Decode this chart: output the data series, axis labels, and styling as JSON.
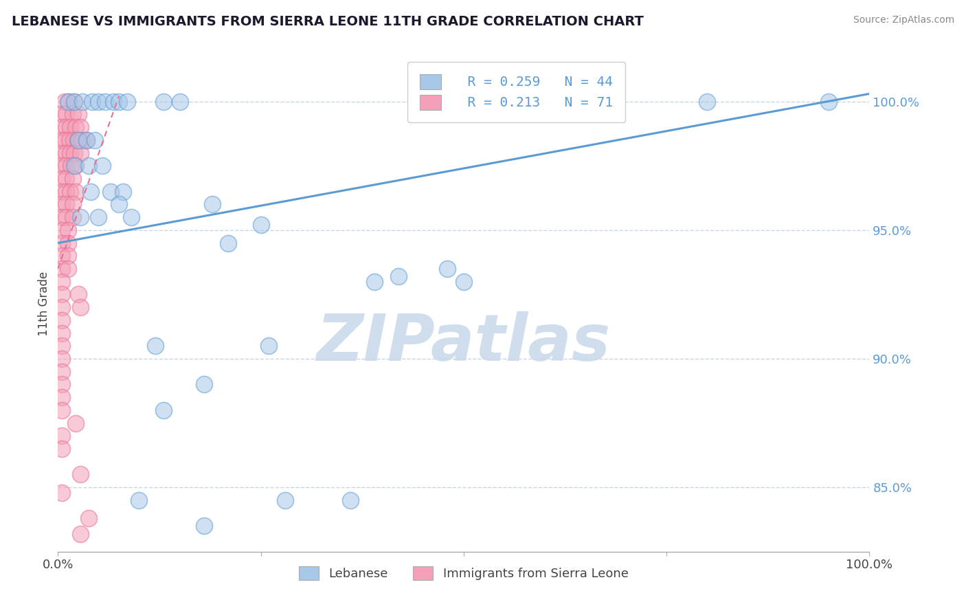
{
  "title": "LEBANESE VS IMMIGRANTS FROM SIERRA LEONE 11TH GRADE CORRELATION CHART",
  "source": "Source: ZipAtlas.com",
  "ylabel": "11th Grade",
  "xlim": [
    0.0,
    100.0
  ],
  "ylim": [
    82.5,
    101.8
  ],
  "yticks": [
    85.0,
    90.0,
    95.0,
    100.0
  ],
  "ytick_labels": [
    "85.0%",
    "90.0%",
    "95.0%",
    "100.0%"
  ],
  "blue_color": "#5b9bd5",
  "blue_scatter_color": "#a8c8e8",
  "pink_color": "#e87090",
  "pink_scatter_color": "#f4a0b8",
  "blue_scatter": [
    [
      1.2,
      100.0
    ],
    [
      2.0,
      100.0
    ],
    [
      3.0,
      100.0
    ],
    [
      4.2,
      100.0
    ],
    [
      5.0,
      100.0
    ],
    [
      5.8,
      100.0
    ],
    [
      6.8,
      100.0
    ],
    [
      7.5,
      100.0
    ],
    [
      8.5,
      100.0
    ],
    [
      13.0,
      100.0
    ],
    [
      15.0,
      100.0
    ],
    [
      80.0,
      100.0
    ],
    [
      95.0,
      100.0
    ],
    [
      2.5,
      98.5
    ],
    [
      3.5,
      98.5
    ],
    [
      4.5,
      98.5
    ],
    [
      2.0,
      97.5
    ],
    [
      3.8,
      97.5
    ],
    [
      5.5,
      97.5
    ],
    [
      4.0,
      96.5
    ],
    [
      6.5,
      96.5
    ],
    [
      8.0,
      96.5
    ],
    [
      7.5,
      96.0
    ],
    [
      19.0,
      96.0
    ],
    [
      2.8,
      95.5
    ],
    [
      5.0,
      95.5
    ],
    [
      9.0,
      95.5
    ],
    [
      25.0,
      95.2
    ],
    [
      21.0,
      94.5
    ],
    [
      42.0,
      93.2
    ],
    [
      48.0,
      93.5
    ],
    [
      12.0,
      90.5
    ],
    [
      26.0,
      90.5
    ],
    [
      50.0,
      93.0
    ],
    [
      18.0,
      89.0
    ],
    [
      13.0,
      88.0
    ],
    [
      39.0,
      93.0
    ],
    [
      10.0,
      84.5
    ],
    [
      36.0,
      84.5
    ],
    [
      18.0,
      83.5
    ],
    [
      28.0,
      84.5
    ]
  ],
  "pink_scatter": [
    [
      0.8,
      100.0
    ],
    [
      1.3,
      100.0
    ],
    [
      2.0,
      100.0
    ],
    [
      0.5,
      99.5
    ],
    [
      1.0,
      99.5
    ],
    [
      1.8,
      99.5
    ],
    [
      2.5,
      99.5
    ],
    [
      0.5,
      99.0
    ],
    [
      1.0,
      99.0
    ],
    [
      1.5,
      99.0
    ],
    [
      2.2,
      99.0
    ],
    [
      2.8,
      99.0
    ],
    [
      0.5,
      98.5
    ],
    [
      0.9,
      98.5
    ],
    [
      1.4,
      98.5
    ],
    [
      1.9,
      98.5
    ],
    [
      2.4,
      98.5
    ],
    [
      2.9,
      98.5
    ],
    [
      3.5,
      98.5
    ],
    [
      0.5,
      98.0
    ],
    [
      1.0,
      98.0
    ],
    [
      1.5,
      98.0
    ],
    [
      2.0,
      98.0
    ],
    [
      2.8,
      98.0
    ],
    [
      0.5,
      97.5
    ],
    [
      1.0,
      97.5
    ],
    [
      1.6,
      97.5
    ],
    [
      2.2,
      97.5
    ],
    [
      0.5,
      97.0
    ],
    [
      1.0,
      97.0
    ],
    [
      1.8,
      97.0
    ],
    [
      0.5,
      96.5
    ],
    [
      1.0,
      96.5
    ],
    [
      1.5,
      96.5
    ],
    [
      2.2,
      96.5
    ],
    [
      0.5,
      96.0
    ],
    [
      1.0,
      96.0
    ],
    [
      1.8,
      96.0
    ],
    [
      0.5,
      95.5
    ],
    [
      1.0,
      95.5
    ],
    [
      1.8,
      95.5
    ],
    [
      0.5,
      95.0
    ],
    [
      1.2,
      95.0
    ],
    [
      0.5,
      94.5
    ],
    [
      1.2,
      94.5
    ],
    [
      0.5,
      94.0
    ],
    [
      1.2,
      94.0
    ],
    [
      0.5,
      93.5
    ],
    [
      1.2,
      93.5
    ],
    [
      0.5,
      93.0
    ],
    [
      0.5,
      92.5
    ],
    [
      2.5,
      92.5
    ],
    [
      0.5,
      92.0
    ],
    [
      2.8,
      92.0
    ],
    [
      0.5,
      91.5
    ],
    [
      0.5,
      91.0
    ],
    [
      0.5,
      90.5
    ],
    [
      0.5,
      90.0
    ],
    [
      0.5,
      89.5
    ],
    [
      0.5,
      89.0
    ],
    [
      0.5,
      88.5
    ],
    [
      0.5,
      88.0
    ],
    [
      2.2,
      87.5
    ],
    [
      0.5,
      87.0
    ],
    [
      0.5,
      86.5
    ],
    [
      2.8,
      85.5
    ],
    [
      0.5,
      84.8
    ],
    [
      3.8,
      83.8
    ],
    [
      2.8,
      83.2
    ]
  ],
  "blue_line_x": [
    0.0,
    100.0
  ],
  "blue_line_y": [
    94.5,
    100.3
  ],
  "pink_line_x": [
    0.0,
    7.5
  ],
  "pink_line_y": [
    93.5,
    100.2
  ],
  "background_color": "#ffffff",
  "grid_color": "#c8d4e0",
  "watermark_text": "ZIPatlas",
  "watermark_color": "#c8d8ea",
  "legend_R_N_color": "#5b9bd5",
  "legend_blue_patch": "#a8c8e8",
  "legend_pink_patch": "#f4a0b8"
}
